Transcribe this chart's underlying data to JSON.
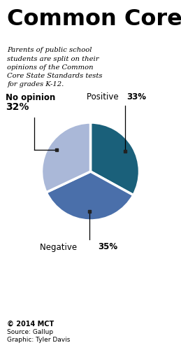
{
  "title": "Common Core",
  "subtitle": "Parents of public school\nstudents are split on their\nopinions of the Common\nCore State Standards tests\nfor grades K-12.",
  "slices": [
    33,
    35,
    32
  ],
  "labels": [
    "Positive",
    "Negative",
    "No opinion"
  ],
  "colors": [
    "#1a607a",
    "#4a6faa",
    "#aab8d8"
  ],
  "footer1": "© 2014 MCT",
  "footer2": "Source: Gallup",
  "footer3": "Graphic: Tyler Davis",
  "bg_color": "#ffffff",
  "startangle": 90
}
